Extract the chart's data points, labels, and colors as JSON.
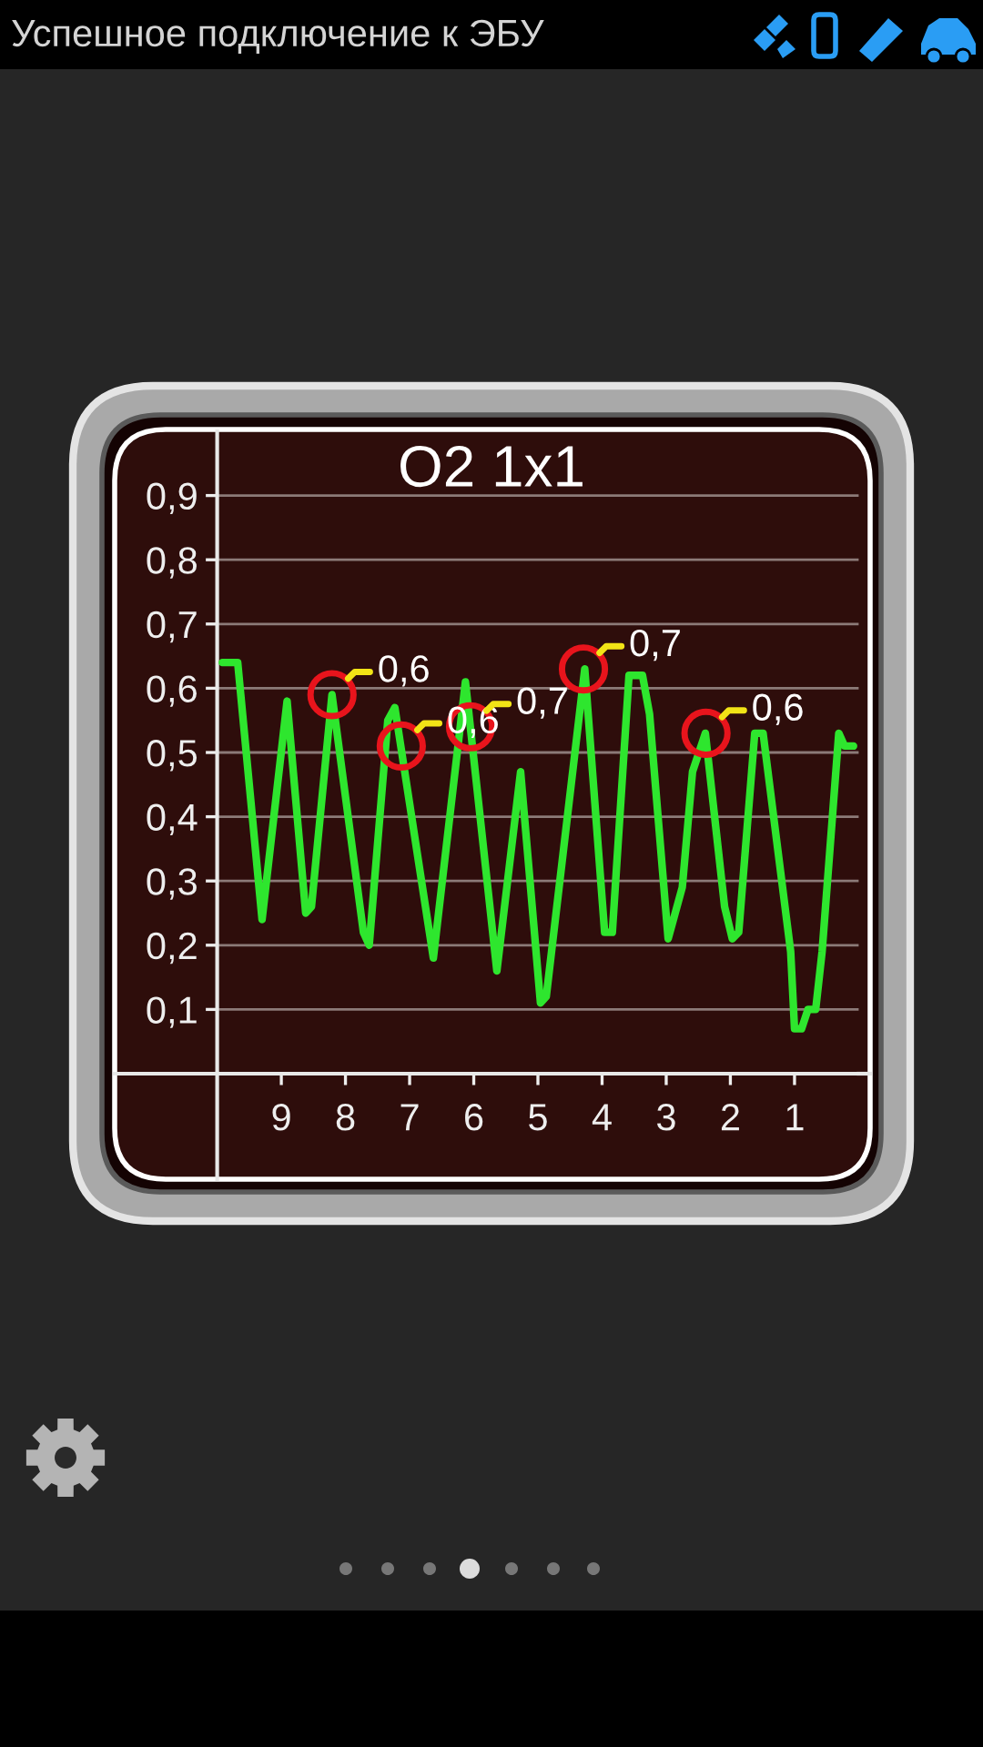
{
  "chart_data": {
    "type": "line",
    "title": "O2 1x1",
    "x": [
      9.92,
      9.68,
      9.3,
      8.91,
      8.62,
      8.53,
      8.21,
      7.72,
      7.63,
      7.34,
      7.23,
      6.63,
      6.13,
      5.64,
      5.27,
      4.96,
      4.87,
      4.27,
      3.96,
      3.84,
      3.58,
      3.37,
      3.26,
      2.97,
      2.75,
      2.59,
      2.39,
      2.09,
      1.97,
      1.87,
      1.62,
      1.49,
      1.06,
      1.0,
      0.89,
      0.79,
      0.67,
      0.57,
      0.31,
      0.22,
      0.08
    ],
    "values": [
      0.64,
      0.64,
      0.24,
      0.58,
      0.25,
      0.26,
      0.59,
      0.22,
      0.2,
      0.55,
      0.57,
      0.18,
      0.61,
      0.16,
      0.47,
      0.11,
      0.12,
      0.63,
      0.22,
      0.22,
      0.62,
      0.62,
      0.56,
      0.21,
      0.29,
      0.47,
      0.53,
      0.26,
      0.21,
      0.22,
      0.53,
      0.53,
      0.19,
      0.07,
      0.07,
      0.1,
      0.1,
      0.19,
      0.53,
      0.51,
      0.51
    ],
    "color": "#2ee62e",
    "xlim": [
      10,
      0
    ],
    "xticks": [
      9,
      8,
      7,
      6,
      5,
      4,
      3,
      2,
      1
    ],
    "ylim": [
      0,
      1
    ],
    "yticks": [
      {
        "value": 0.1,
        "label": "0,1"
      },
      {
        "value": 0.2,
        "label": "0,2"
      },
      {
        "value": 0.3,
        "label": "0,3"
      },
      {
        "value": 0.4,
        "label": "0,4"
      },
      {
        "value": 0.5,
        "label": "0,5"
      },
      {
        "value": 0.6,
        "label": "0,6"
      },
      {
        "value": 0.7,
        "label": "0,7"
      },
      {
        "value": 0.8,
        "label": "0,8"
      },
      {
        "value": 0.9,
        "label": "0,9"
      }
    ],
    "grid": "y",
    "annotations": [
      "Успешное подключение к ЭБУ",
      {
        "text": "0,6",
        "x": 8.21,
        "y": 0.59
      },
      {
        "text": "0,6",
        "x": 7.13,
        "y": 0.51
      },
      {
        "text": "0,7",
        "x": 6.05,
        "y": 0.54
      },
      {
        "text": "0,7",
        "x": 4.29,
        "y": 0.63
      },
      {
        "text": "0,6",
        "x": 2.38,
        "y": 0.53
      }
    ]
  }
}
